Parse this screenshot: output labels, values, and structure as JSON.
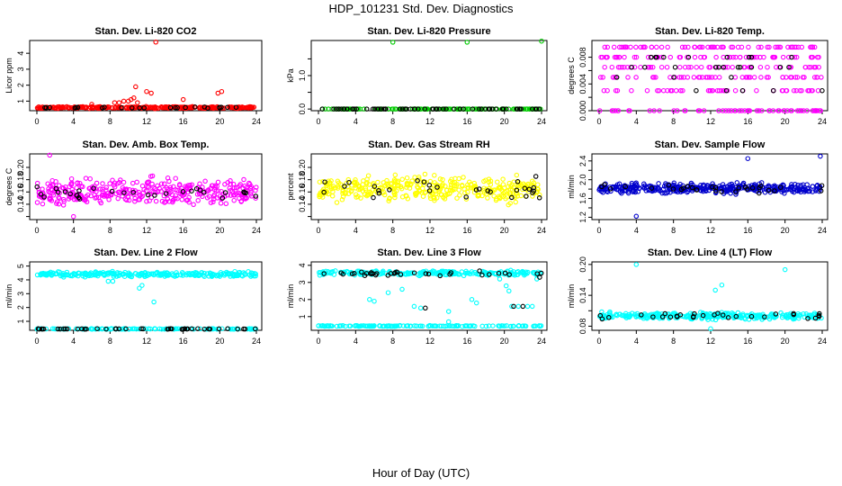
{
  "page": {
    "title": "HDP_101231  Std. Dev. Diagnostics",
    "xlabel": "Hour of Day (UTC)"
  },
  "chart_data": [
    {
      "type": "scatter",
      "title": "Stan. Dev. Li-820 CO2",
      "ylabel": "Licor ppm",
      "xlim": [
        0,
        24
      ],
      "ylim": [
        0.4,
        4.8
      ],
      "xticks": [
        0,
        4,
        8,
        12,
        16,
        20,
        24
      ],
      "yticks": [
        1,
        2,
        3,
        4
      ],
      "series": [
        {
          "color": "#ff0000",
          "base": 0.6,
          "spread": 0.08,
          "count": 300,
          "points": [
            [
              8.5,
              0.9
            ],
            [
              9,
              0.9
            ],
            [
              9.5,
              1.0
            ],
            [
              10,
              1.0
            ],
            [
              10.3,
              1.1
            ],
            [
              10.6,
              1.2
            ],
            [
              10.8,
              1.9
            ],
            [
              11,
              0.9
            ],
            [
              12,
              1.6
            ],
            [
              12.5,
              1.5
            ],
            [
              13,
              4.7
            ],
            [
              16,
              1.1
            ],
            [
              19.8,
              1.5
            ],
            [
              20.2,
              1.6
            ],
            [
              6,
              0.8
            ]
          ]
        },
        {
          "color": "#000000",
          "base": 0.6,
          "spread": 0.05,
          "count": 24,
          "points": []
        }
      ]
    },
    {
      "type": "scatter",
      "title": "Stan. Dev. Li-820 Pressure",
      "ylabel": "kPa",
      "xlim": [
        0,
        24
      ],
      "ylim": [
        -0.05,
        2.05
      ],
      "xticks": [
        0,
        4,
        8,
        12,
        16,
        20,
        24
      ],
      "yticks": [
        0.0,
        0.5,
        1.0,
        1.5
      ],
      "yticklabels": [
        "0.0",
        "",
        "1.0",
        ""
      ],
      "series": [
        {
          "color": "#00cc00",
          "base": 0.0,
          "spread": 0.0,
          "count": 140,
          "points": [
            [
              8,
              2.0
            ],
            [
              16,
              2.0
            ],
            [
              24,
              2.03
            ]
          ]
        },
        {
          "color": "#000000",
          "base": 0.0,
          "spread": 0.0,
          "count": 60,
          "points": []
        }
      ]
    },
    {
      "type": "scatter",
      "title": "Stan. Dev. Li-820 Temp.",
      "ylabel": "degrees C",
      "xlim": [
        0,
        24
      ],
      "ylim": [
        0.0,
        0.0105
      ],
      "xticks": [
        0,
        4,
        8,
        12,
        16,
        20,
        24
      ],
      "yticks": [
        0.0,
        0.002,
        0.004,
        0.006,
        0.008
      ],
      "yticklabels": [
        "0.000",
        "",
        "0.004",
        "",
        "0.008"
      ],
      "series": [
        {
          "color": "#ff00ff",
          "levels": [
            0.0,
            0.003,
            0.005,
            0.0065,
            0.008,
            0.0095
          ],
          "count": 330,
          "points": []
        },
        {
          "color": "#000000",
          "levels": [
            0.003,
            0.005,
            0.0065,
            0.008
          ],
          "count": 28,
          "points": []
        }
      ]
    },
    {
      "type": "scatter",
      "title": "Stan. Dev. Amb. Box Temp.",
      "ylabel": "degrees C",
      "xlim": [
        0,
        24
      ],
      "ylim": [
        0.115,
        0.222
      ],
      "xticks": [
        0,
        4,
        8,
        12,
        16,
        20,
        24
      ],
      "yticks": [
        0.12,
        0.14,
        0.16,
        0.18,
        0.2
      ],
      "yticklabels": [
        "",
        "0.14",
        "0.16",
        "0.18",
        "0.20"
      ],
      "series": [
        {
          "color": "#ff00ff",
          "base": 0.16,
          "spread": 0.03,
          "count": 360,
          "points": [
            [
              1.4,
              0.22
            ],
            [
              4,
              0.12
            ]
          ]
        },
        {
          "color": "#000000",
          "base": 0.16,
          "spread": 0.02,
          "count": 30,
          "points": []
        }
      ]
    },
    {
      "type": "scatter",
      "title": "Stan. Dev. Gas Stream RH",
      "ylabel": "percent",
      "xlim": [
        0,
        24
      ],
      "ylim": [
        0.115,
        0.222
      ],
      "xticks": [
        0,
        4,
        8,
        12,
        16,
        20,
        24
      ],
      "yticks": [
        0.12,
        0.14,
        0.16,
        0.18,
        0.2
      ],
      "yticklabels": [
        "",
        "0.14",
        "0.16",
        "0.18",
        "0.20"
      ],
      "series": [
        {
          "color": "#ffff00",
          "base": 0.165,
          "spread": 0.03,
          "count": 360,
          "points": []
        },
        {
          "color": "#000000",
          "base": 0.165,
          "spread": 0.025,
          "count": 30,
          "points": []
        }
      ]
    },
    {
      "type": "scatter",
      "title": "Stan. Dev. Sample Flow",
      "ylabel": "ml/min",
      "xlim": [
        0,
        24
      ],
      "ylim": [
        1.15,
        2.55
      ],
      "xticks": [
        0,
        4,
        8,
        12,
        16,
        20,
        24
      ],
      "yticks": [
        1.2,
        1.4,
        1.6,
        1.8,
        2.0,
        2.2,
        2.4
      ],
      "yticklabels": [
        "1.2",
        "",
        "1.6",
        "",
        "2.0",
        "",
        "2.4"
      ],
      "series": [
        {
          "color": "#0000cc",
          "base": 1.82,
          "spread": 0.15,
          "count": 360,
          "points": [
            [
              4,
              1.22
            ],
            [
              16,
              2.45
            ],
            [
              23.8,
              2.5
            ]
          ]
        },
        {
          "color": "#000000",
          "base": 1.8,
          "spread": 0.12,
          "count": 30,
          "points": []
        }
      ]
    },
    {
      "type": "scatter",
      "title": "Stan. Dev. Line 2 Flow",
      "ylabel": "ml/min",
      "xlim": [
        0,
        24
      ],
      "ylim": [
        0.35,
        5.3
      ],
      "xticks": [
        0,
        4,
        8,
        12,
        16,
        20,
        24
      ],
      "yticks": [
        1,
        2,
        3,
        4,
        5
      ],
      "series": [
        {
          "color": "#00ffff",
          "base": 4.4,
          "spread": 0.25,
          "count": 260,
          "points": [
            [
              0.5,
              0.45
            ],
            [
              12.8,
              2.4
            ],
            [
              11.2,
              3.4
            ],
            [
              11.5,
              3.6
            ],
            [
              8.3,
              3.9
            ],
            [
              7.8,
              3.9
            ]
          ]
        },
        {
          "color": "#00ffff",
          "base": 0.45,
          "spread": 0.04,
          "count": 120,
          "points": []
        },
        {
          "color": "#000000",
          "base": 0.45,
          "spread": 0.03,
          "count": 42,
          "points": []
        }
      ]
    },
    {
      "type": "scatter",
      "title": "Stan. Dev. Line 3 Flow",
      "ylabel": "ml/min",
      "xlim": [
        0,
        24
      ],
      "ylim": [
        0.2,
        4.2
      ],
      "xticks": [
        0,
        4,
        8,
        12,
        16,
        20,
        24
      ],
      "yticks": [
        1,
        2,
        3,
        4
      ],
      "series": [
        {
          "color": "#00ffff",
          "base": 3.55,
          "spread": 0.2,
          "count": 230,
          "points": [
            [
              5.5,
              2.0
            ],
            [
              6,
              1.9
            ],
            [
              7.5,
              2.4
            ],
            [
              9,
              2.6
            ],
            [
              11,
              1.5
            ],
            [
              14,
              1.3
            ],
            [
              16.5,
              2.0
            ],
            [
              17,
              1.8
            ],
            [
              14,
              0.7
            ],
            [
              10.3,
              1.6
            ],
            [
              20.8,
              1.6
            ],
            [
              21.5,
              1.6
            ],
            [
              22.5,
              1.6
            ],
            [
              23,
              1.6
            ],
            [
              20.5,
              2.5
            ],
            [
              20.2,
              2.8
            ],
            [
              19.5,
              3.2
            ],
            [
              23.5,
              3.2
            ],
            [
              23.8,
              3.5
            ]
          ]
        },
        {
          "color": "#00ffff",
          "base": 0.45,
          "spread": 0.04,
          "count": 150,
          "points": []
        },
        {
          "color": "#000000",
          "base": 3.5,
          "spread": 0.2,
          "count": 34,
          "points": [
            [
              11.5,
              1.5
            ],
            [
              21,
              1.6
            ],
            [
              22,
              1.6
            ],
            [
              23.8,
              3.3
            ]
          ]
        }
      ]
    },
    {
      "type": "scatter",
      "title": "Stan. Dev. Line 4 (LT) Flow",
      "ylabel": "ml/min",
      "xlim": [
        0,
        24
      ],
      "ylim": [
        0.072,
        0.205
      ],
      "xticks": [
        0,
        4,
        8,
        12,
        16,
        20,
        24
      ],
      "yticks": [
        0.08,
        0.11,
        0.14,
        0.17,
        0.2
      ],
      "yticklabels": [
        "0.08",
        "",
        "0.14",
        "",
        "0.20"
      ],
      "series": [
        {
          "color": "#00ffff",
          "base": 0.1,
          "spread": 0.009,
          "count": 330,
          "points": [
            [
              4,
              0.2
            ],
            [
              20,
              0.19
            ],
            [
              12.5,
              0.15
            ],
            [
              13.2,
              0.16
            ],
            [
              12,
              0.075
            ]
          ]
        },
        {
          "color": "#000000",
          "base": 0.1,
          "spread": 0.007,
          "count": 30,
          "points": []
        }
      ]
    }
  ]
}
